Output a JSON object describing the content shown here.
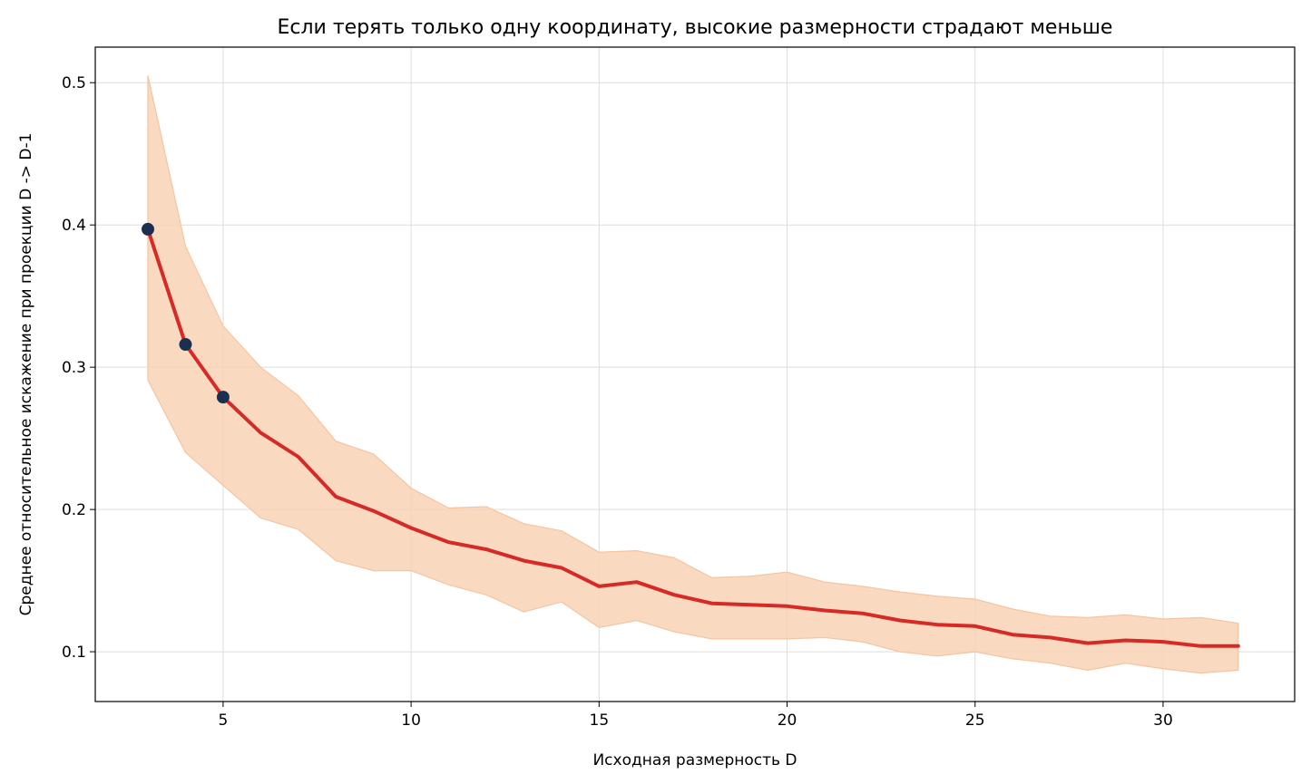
{
  "chart_data": {
    "type": "line",
    "title": "Если терять только одну координату, высокие размерности страдают меньше",
    "xlabel": "Исходная размерность D",
    "ylabel": "Среднее относительное искажение при проекции D -> D-1",
    "xlim": [
      1.6,
      33.5
    ],
    "ylim": [
      0.065,
      0.525
    ],
    "xticks": [
      5,
      10,
      15,
      20,
      25,
      30
    ],
    "yticks": [
      0.1,
      0.2,
      0.3,
      0.4,
      0.5
    ],
    "grid": true,
    "x": [
      3,
      4,
      5,
      6,
      7,
      8,
      9,
      10,
      11,
      12,
      13,
      14,
      15,
      16,
      17,
      18,
      19,
      20,
      21,
      22,
      23,
      24,
      25,
      26,
      27,
      28,
      29,
      30,
      31,
      32
    ],
    "mean": [
      0.397,
      0.316,
      0.279,
      0.254,
      0.237,
      0.209,
      0.199,
      0.187,
      0.177,
      0.172,
      0.164,
      0.159,
      0.146,
      0.149,
      0.14,
      0.134,
      0.133,
      0.132,
      0.129,
      0.127,
      0.122,
      0.119,
      0.118,
      0.112,
      0.11,
      0.106,
      0.108,
      0.107,
      0.104,
      0.104
    ],
    "upper": [
      0.505,
      0.385,
      0.329,
      0.3,
      0.28,
      0.248,
      0.239,
      0.215,
      0.201,
      0.202,
      0.19,
      0.185,
      0.17,
      0.171,
      0.166,
      0.152,
      0.153,
      0.156,
      0.149,
      0.146,
      0.142,
      0.139,
      0.137,
      0.13,
      0.125,
      0.124,
      0.126,
      0.123,
      0.124,
      0.12
    ],
    "lower": [
      0.291,
      0.24,
      0.217,
      0.194,
      0.186,
      0.164,
      0.157,
      0.157,
      0.147,
      0.14,
      0.128,
      0.135,
      0.117,
      0.122,
      0.114,
      0.109,
      0.109,
      0.109,
      0.11,
      0.107,
      0.1,
      0.097,
      0.1,
      0.095,
      0.092,
      0.087,
      0.092,
      0.088,
      0.085,
      0.087
    ],
    "highlighted_x": [
      3,
      4,
      5
    ],
    "colors": {
      "line": "#d62a26",
      "band": "#f8d3b6",
      "band_edge": "#f5c4a0",
      "markers": "#1b3050",
      "grid": "#dddddd"
    }
  }
}
